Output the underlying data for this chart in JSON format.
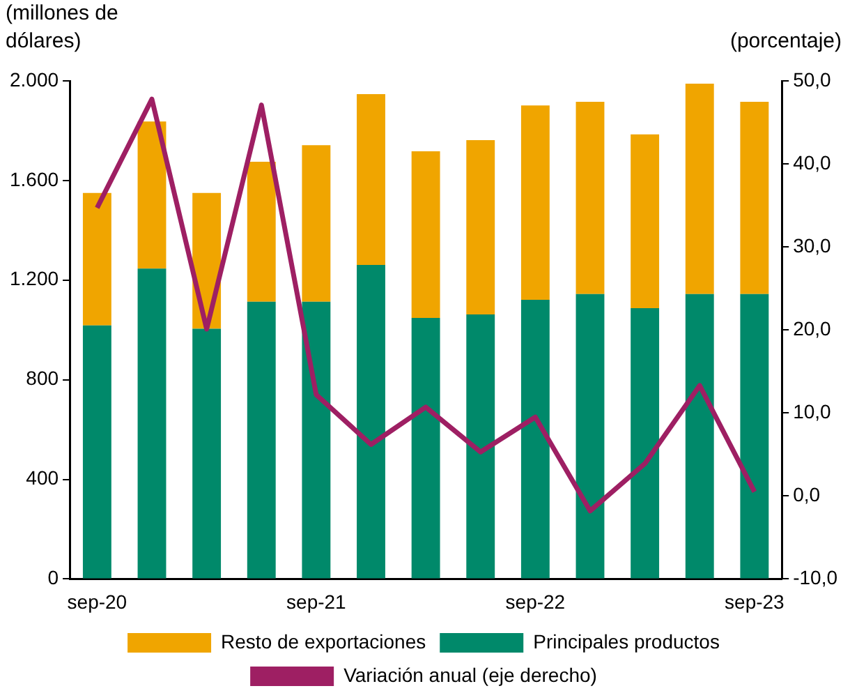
{
  "chart_data": {
    "type": "bar",
    "stacked": true,
    "categories": [
      "sep-20",
      null,
      null,
      null,
      "sep-21",
      null,
      null,
      null,
      "sep-22",
      null,
      null,
      null,
      "sep-23"
    ],
    "ylabel": "(millones de dólares)",
    "y2label": "(porcentaje)",
    "ylim": [
      0,
      2000
    ],
    "yticks": [
      {
        "value": 0,
        "label": "0"
      },
      {
        "value": 400,
        "label": "400"
      },
      {
        "value": 800,
        "label": "800"
      },
      {
        "value": 1200,
        "label": "1.200"
      },
      {
        "value": 1600,
        "label": "1.600"
      },
      {
        "value": 2000,
        "label": "2.000"
      }
    ],
    "y2lim": [
      -10,
      50
    ],
    "y2ticks": [
      {
        "value": -10,
        "label": "-10,0"
      },
      {
        "value": 0,
        "label": "0,0"
      },
      {
        "value": 10,
        "label": "10,0"
      },
      {
        "value": 20,
        "label": "20,0"
      },
      {
        "value": 30,
        "label": "30,0"
      },
      {
        "value": 40,
        "label": "40,0"
      },
      {
        "value": 50,
        "label": "50,0"
      }
    ],
    "series": [
      {
        "name": "Principales productos",
        "color": "#00896a",
        "values": [
          1018,
          1246,
          1005,
          1113,
          1113,
          1261,
          1048,
          1062,
          1121,
          1144,
          1087,
          1144,
          1144
        ]
      },
      {
        "name": "Resto de exportaciones",
        "color": "#f0a500",
        "values": [
          532,
          591,
          545,
          562,
          629,
          686,
          669,
          700,
          780,
          772,
          698,
          845,
          772
        ]
      },
      {
        "name": "Variación anual (eje derecho)",
        "type": "line",
        "axis": "y2",
        "color": "#9e1f63",
        "values": [
          34.7,
          47.8,
          20.1,
          47.1,
          12.2,
          6.2,
          10.7,
          5.3,
          9.5,
          -1.8,
          3.9,
          13.3,
          0.5
        ]
      }
    ],
    "legend": "bottom",
    "grid": false,
    "marker": "none"
  }
}
